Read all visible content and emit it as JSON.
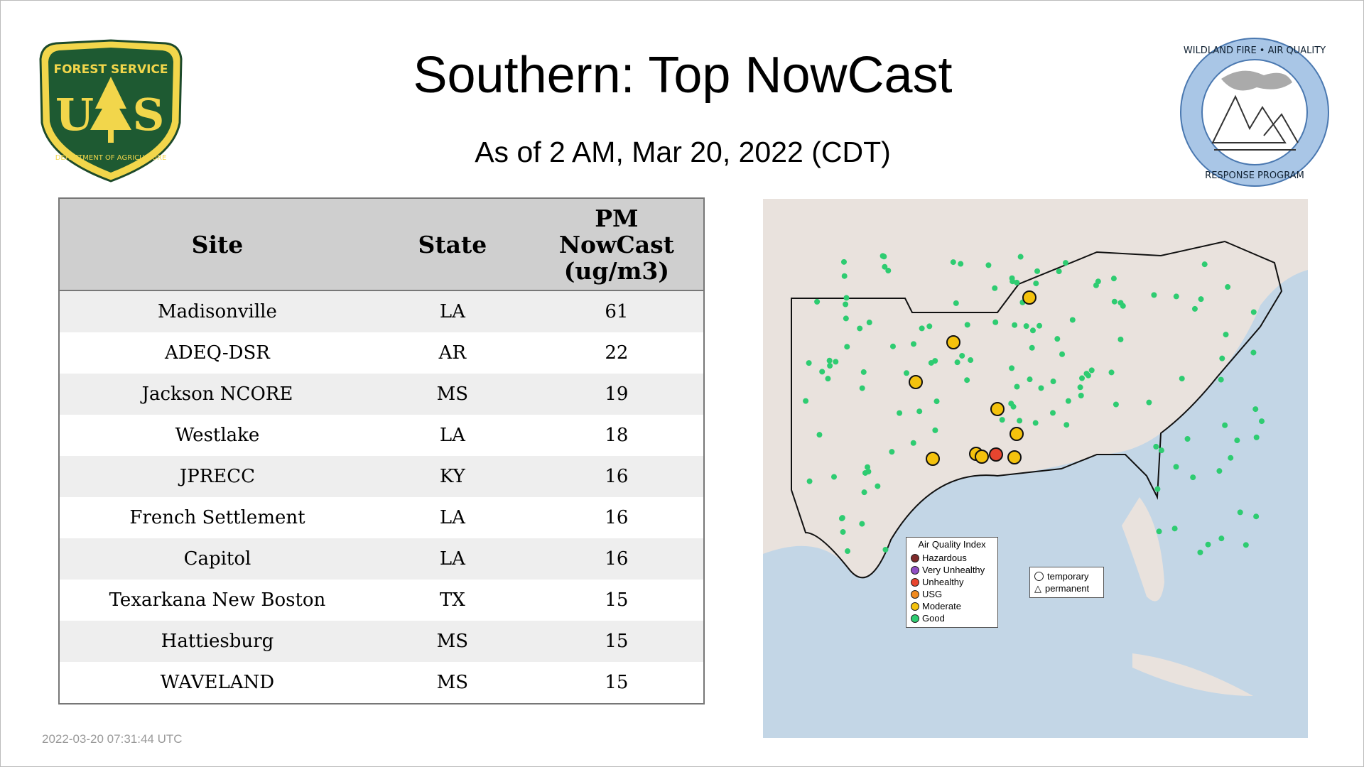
{
  "header": {
    "title": "Southern: Top NowCast",
    "subtitle": "As of  2 AM, Mar 20, 2022 (CDT)"
  },
  "logos": {
    "left": "FOREST SERVICE U S DEPARTMENT OF AGRICULTURE",
    "right": "WILDLAND FIRE • AIR QUALITY RESPONSE PROGRAM"
  },
  "table": {
    "columns": [
      "Site",
      "State",
      "PM NowCast (ug/m3)"
    ],
    "rows": [
      {
        "site": "Madisonville",
        "state": "LA",
        "value": "61"
      },
      {
        "site": "ADEQ-DSR",
        "state": "AR",
        "value": "22"
      },
      {
        "site": "Jackson NCORE",
        "state": "MS",
        "value": "19"
      },
      {
        "site": "Westlake",
        "state": "LA",
        "value": "18"
      },
      {
        "site": "JPRECC",
        "state": "KY",
        "value": "16"
      },
      {
        "site": "French Settlement",
        "state": "LA",
        "value": "16"
      },
      {
        "site": "Capitol",
        "state": "LA",
        "value": "16"
      },
      {
        "site": "Texarkana New Boston",
        "state": "TX",
        "value": "15"
      },
      {
        "site": "Hattiesburg",
        "state": "MS",
        "value": "15"
      },
      {
        "site": "WAVELAND",
        "state": "MS",
        "value": "15"
      }
    ]
  },
  "map": {
    "legend": {
      "title": "Air Quality Index",
      "items": [
        {
          "label": "Hazardous",
          "color": "#7e2a2a"
        },
        {
          "label": "Very Unhealthy",
          "color": "#8f4fc4"
        },
        {
          "label": "Unhealthy",
          "color": "#e8452f"
        },
        {
          "label": "USG",
          "color": "#f08a1e"
        },
        {
          "label": "Moderate",
          "color": "#f4c20d"
        },
        {
          "label": "Good",
          "color": "#2ecc71"
        }
      ]
    },
    "shape_legend": {
      "temporary": "temporary",
      "permanent": "permanent"
    }
  },
  "footer": {
    "timestamp": "2022-03-20 07:31:44 UTC"
  }
}
